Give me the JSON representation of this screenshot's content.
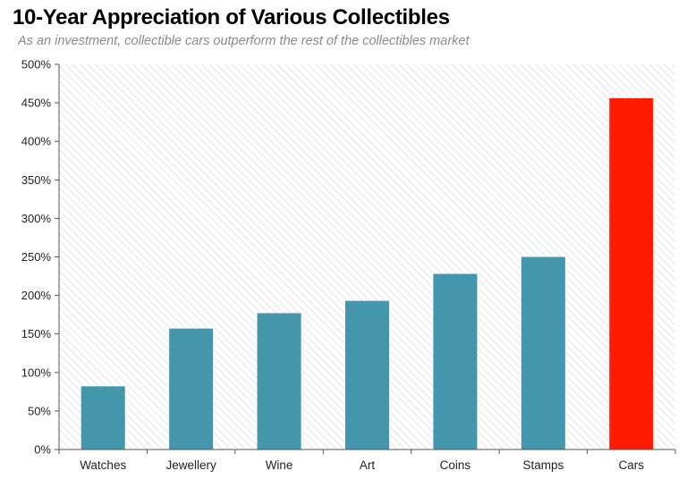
{
  "title": "10-Year Appreciation of Various Collectibles",
  "subtitle": "As an investment, collectible cars outperform the rest of the collectibles market",
  "colors": {
    "bar": "#4396ab",
    "highlight": "#ff1a00",
    "hatch": "#e4e4e4",
    "axis": "#555555"
  },
  "chart_data": {
    "type": "bar",
    "title": "10-Year Appreciation of Various Collectibles",
    "subtitle": "As an investment, collectible cars outperform the rest of the collectibles market",
    "categories": [
      "Watches",
      "Jewellery",
      "Wine",
      "Art",
      "Coins",
      "Stamps",
      "Cars"
    ],
    "values": [
      82,
      157,
      177,
      193,
      228,
      250,
      456
    ],
    "highlight": [
      "Cars"
    ],
    "xlabel": "",
    "ylabel": "",
    "ylim": [
      0,
      500
    ],
    "yticks": [
      0,
      50,
      100,
      150,
      200,
      250,
      300,
      350,
      400,
      450,
      500
    ],
    "ytick_labels": [
      "0%",
      "50%",
      "100%",
      "150%",
      "200%",
      "250%",
      "300%",
      "350%",
      "400%",
      "450%",
      "500%"
    ],
    "grid": false,
    "legend": "none"
  }
}
